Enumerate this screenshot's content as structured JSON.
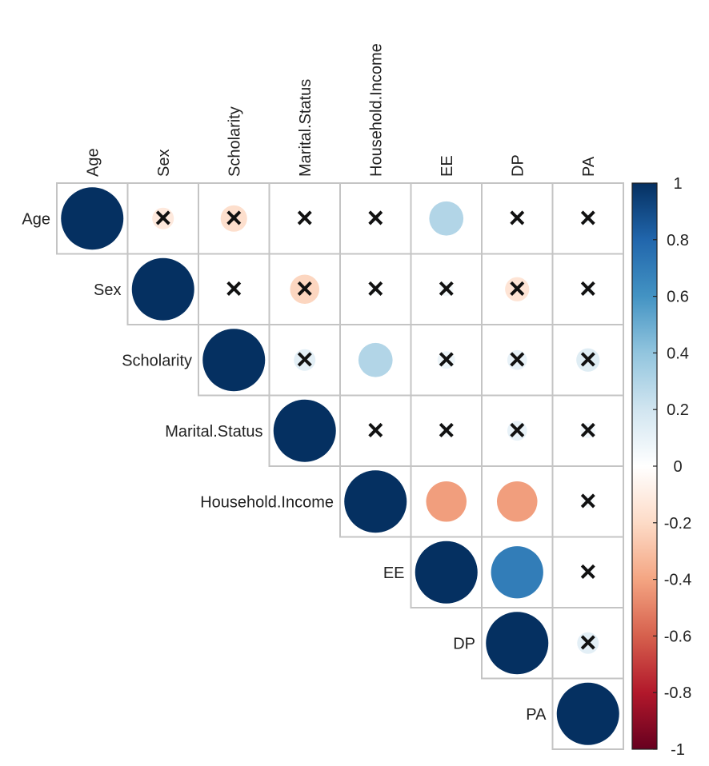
{
  "chart_data": {
    "type": "heatmap",
    "style": "correlation-circle-upper",
    "variables": [
      "Age",
      "Sex",
      "Scholarity",
      "Marital.Status",
      "Household.Income",
      "EE",
      "DP",
      "PA"
    ],
    "matrix": [
      [
        1.0,
        -0.12,
        -0.18,
        0.02,
        0.03,
        0.3,
        0.02,
        0.03
      ],
      [
        null,
        1.0,
        0.02,
        -0.22,
        0.03,
        0.05,
        -0.15,
        0.04
      ],
      [
        null,
        null,
        1.0,
        0.12,
        0.3,
        0.08,
        0.1,
        0.14
      ],
      [
        null,
        null,
        null,
        1.0,
        0.03,
        0.04,
        0.1,
        0.06
      ],
      [
        null,
        null,
        null,
        null,
        1.0,
        -0.42,
        -0.42,
        0.04
      ],
      [
        null,
        null,
        null,
        null,
        null,
        1.0,
        0.7,
        0.03
      ],
      [
        null,
        null,
        null,
        null,
        null,
        null,
        1.0,
        0.12
      ],
      [
        null,
        null,
        null,
        null,
        null,
        null,
        null,
        1.0
      ]
    ],
    "non_significant": [
      [
        0,
        1
      ],
      [
        0,
        2
      ],
      [
        0,
        3
      ],
      [
        0,
        4
      ],
      [
        0,
        6
      ],
      [
        0,
        7
      ],
      [
        1,
        2
      ],
      [
        1,
        3
      ],
      [
        1,
        4
      ],
      [
        1,
        5
      ],
      [
        1,
        6
      ],
      [
        1,
        7
      ],
      [
        2,
        3
      ],
      [
        2,
        5
      ],
      [
        2,
        6
      ],
      [
        2,
        7
      ],
      [
        3,
        4
      ],
      [
        3,
        5
      ],
      [
        3,
        6
      ],
      [
        3,
        7
      ],
      [
        4,
        7
      ],
      [
        5,
        7
      ],
      [
        6,
        7
      ]
    ],
    "insignificant_marker": "×",
    "colorbar": {
      "range": [
        -1,
        1
      ],
      "ticks": [
        "1",
        "0.8",
        "0.6",
        "0.4",
        "0.2",
        "0",
        "-0.2",
        "-0.4",
        "-0.6",
        "-0.8",
        "-1"
      ],
      "colors": [
        "#67001F",
        "#B2182B",
        "#D6604D",
        "#F4A582",
        "#FDDBC7",
        "#FFFFFF",
        "#D1E5F0",
        "#92C5DE",
        "#4393C3",
        "#2166AC",
        "#053061"
      ]
    }
  }
}
